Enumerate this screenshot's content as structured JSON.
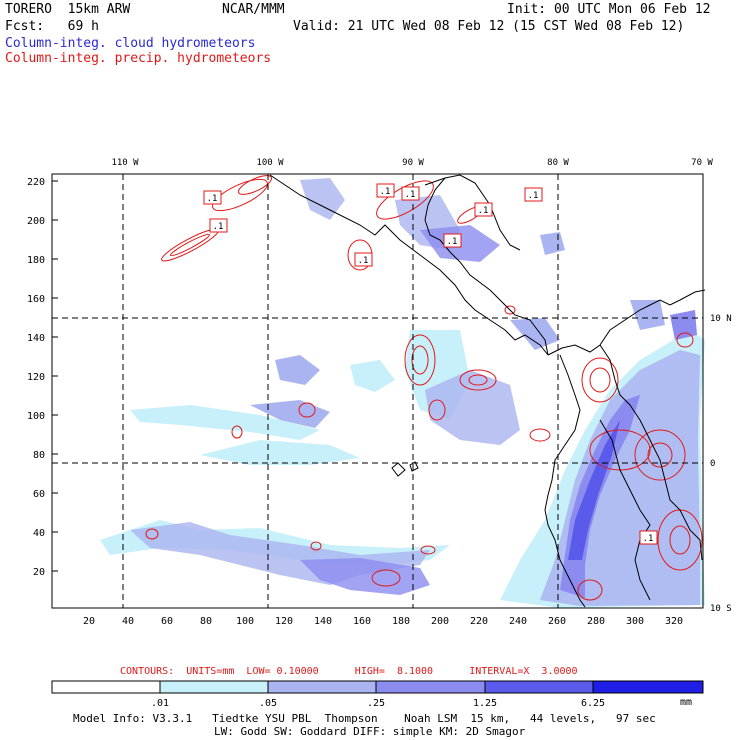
{
  "header": {
    "model": "TORERO  15km ARW",
    "center": "NCAR/MMM",
    "init": "Init: 00 UTC Mon 06 Feb 12",
    "fcst": "Fcst:   69 h",
    "valid": "Valid: 21 UTC Wed 08 Feb 12 (15 CST Wed 08 Feb 12)",
    "legend_cloud": "Column-integ. cloud hydrometeors",
    "legend_precip": "Column-integ. precip. hydrometeors"
  },
  "map": {
    "top_lon_labels": [
      "110 W",
      "100 W",
      "90 W",
      "80 W",
      "70 W"
    ],
    "right_lat_labels": [
      "10 N",
      "0",
      "10 S"
    ],
    "left_ticks": [
      "220",
      "200",
      "180",
      "160",
      "140",
      "120",
      "100",
      "80",
      "60",
      "40",
      "20"
    ],
    "bottom_ticks": [
      "20",
      "40",
      "60",
      "80",
      "100",
      "120",
      "140",
      "160",
      "180",
      "200",
      "220",
      "240",
      "260",
      "280",
      "300",
      "320"
    ],
    "contour_labels": [
      ".1",
      ".1",
      ".1",
      ".1",
      ".1",
      ".1",
      ".1",
      ".1",
      ".1"
    ]
  },
  "contours_info": {
    "text": "CONTOURS:  UNITS=mm  LOW= 0.10000      HIGH=  8.1000      INTERVAL=X  3.0000"
  },
  "colorbar": {
    "labels": [
      ".01",
      ".05",
      ".25",
      "1.25",
      "6.25"
    ],
    "unit": "mm",
    "colors": [
      "#ffffff",
      "#c8f0fa",
      "#aab4f0",
      "#8c8cf0",
      "#5a5aeb",
      "#1e1ee6"
    ]
  },
  "footer": {
    "line1": "Model Info: V3.3.1   Tiedtke YSU PBL  Thompson    Noah LSM  15 km,   44 levels,   97 sec",
    "line2": "LW: Godd SW: Goddard DIFF: simple KM: 2D Smagor"
  }
}
